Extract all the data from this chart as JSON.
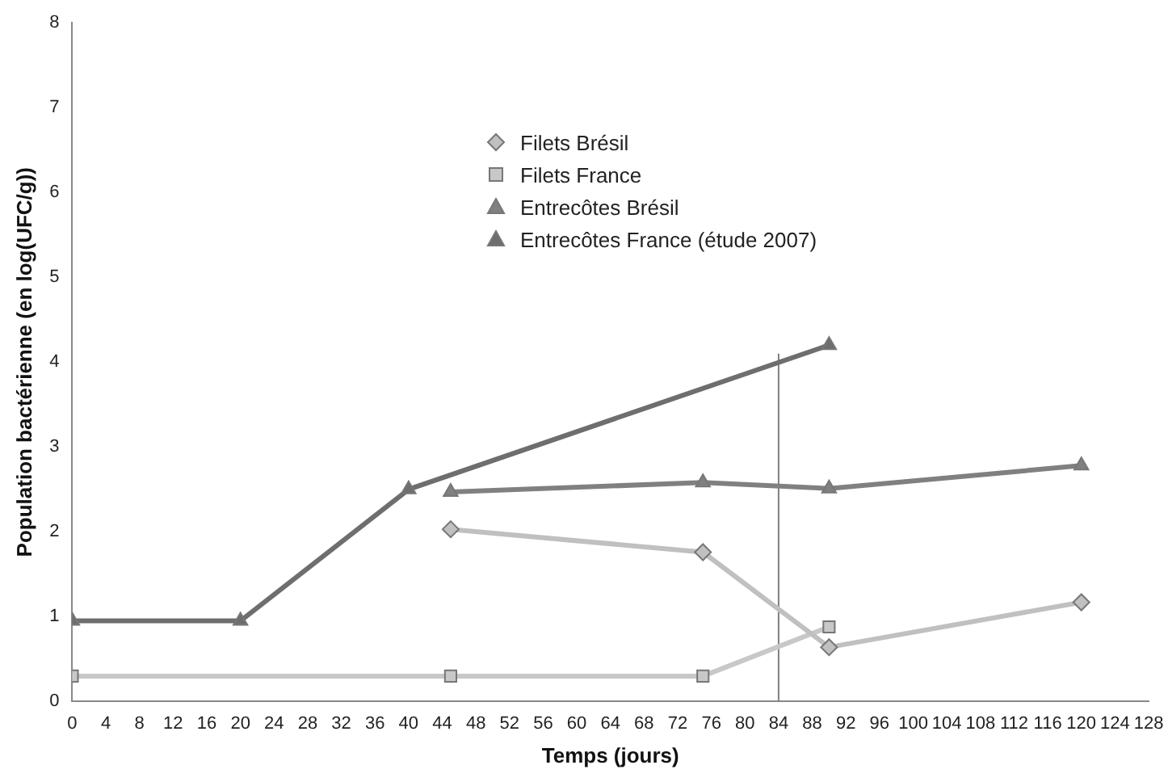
{
  "chart_data": {
    "type": "line",
    "xlabel": "Temps (jours)",
    "ylabel": "Population bactérienne (en log(UFC/g))",
    "xlim": [
      0,
      128
    ],
    "xticks": [
      0,
      4,
      8,
      12,
      16,
      20,
      24,
      28,
      32,
      36,
      40,
      44,
      48,
      52,
      56,
      60,
      64,
      68,
      72,
      76,
      80,
      84,
      88,
      92,
      96,
      100,
      104,
      108,
      112,
      116,
      120,
      124,
      128
    ],
    "ylim": [
      0,
      8
    ],
    "yticks": [
      0,
      1,
      2,
      3,
      4,
      5,
      6,
      7,
      8
    ],
    "grid": false,
    "legend": "top",
    "series": [
      {
        "name": "Filets Brésil",
        "color": "#c0c0c0",
        "marker": "diamond",
        "x": [
          45,
          75,
          90,
          120
        ],
        "values": [
          2.03,
          1.76,
          0.64,
          1.17
        ]
      },
      {
        "name": "Filets France",
        "color": "#c8c8c8",
        "marker": "square",
        "x": [
          0,
          45,
          75,
          90
        ],
        "values": [
          0.3,
          0.3,
          0.3,
          0.88
        ]
      },
      {
        "name": "Entrecôtes Brésil",
        "color": "#808080",
        "marker": "triangle",
        "x": [
          45,
          75,
          90,
          120
        ],
        "values": [
          2.47,
          2.58,
          2.51,
          2.78
        ]
      },
      {
        "name": "Entrecôtes France (étude 2007)",
        "color": "#6e6e6e",
        "marker": "triangle",
        "x": [
          0,
          20,
          40,
          90
        ],
        "values": [
          0.95,
          0.95,
          2.5,
          4.2
        ]
      },
      {
        "color": "#808080",
        "marker": "none",
        "x": [
          84,
          84
        ],
        "values": [
          0,
          4.1
        ]
      }
    ]
  }
}
